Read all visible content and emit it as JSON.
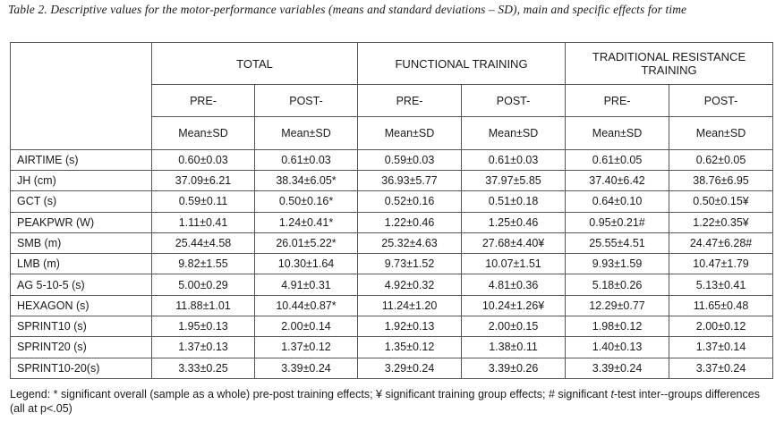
{
  "caption": "Table 2. Descriptive values for the motor-performance variables (means and standard deviations – SD), main and specific effects for time",
  "groups": [
    "TOTAL",
    "FUNCTIONAL TRAINING",
    "TRADITIONAL RESISTANCE TRAINING"
  ],
  "phases": [
    "PRE-",
    "POST-",
    "PRE-",
    "POST-",
    "PRE-",
    "POST-"
  ],
  "stat_label": "Mean±SD",
  "rows": [
    {
      "label": "AIRTIME (s)",
      "values": [
        "0.60±0.03",
        "0.61±0.03",
        "0.59±0.03",
        "0.61±0.03",
        "0.61±0.05",
        "0.62±0.05"
      ]
    },
    {
      "label": "JH (cm)",
      "values": [
        "37.09±6.21",
        "38.34±6.05*",
        "36.93±5.77",
        "37.97±5.85",
        "37.40±6.42",
        "38.76±6.95"
      ]
    },
    {
      "label": "GCT (s)",
      "values": [
        "0.59±0.11",
        "0.50±0.16*",
        "0.52±0.16",
        "0.51±0.18",
        "0.64±0.10",
        "0.50±0.15¥"
      ]
    },
    {
      "label": "PEAKPWR (W)",
      "values": [
        "1.11±0.41",
        "1.24±0.41*",
        "1.22±0.46",
        "1.25±0.46",
        "0.95±0.21#",
        "1.22±0.35¥"
      ]
    },
    {
      "label": "SMB (m)",
      "values": [
        "25.44±4.58",
        "26.01±5.22*",
        "25.32±4.63",
        "27.68±4.40¥",
        "25.55±4.51",
        "24.47±6.28#"
      ]
    },
    {
      "label": "LMB (m)",
      "values": [
        "9.82±1.55",
        "10.30±1.64",
        "9.73±1.52",
        "10.07±1.51",
        "9.93±1.59",
        "10.47±1.79"
      ]
    },
    {
      "label": "AG 5-10-5 (s)",
      "values": [
        "5.00±0.29",
        "4.91±0.31",
        "4.92±0.32",
        "4.81±0.36",
        "5.18±0.26",
        "5.13±0.41"
      ]
    },
    {
      "label": "HEXAGON (s)",
      "values": [
        "11.88±1.01",
        "10.44±0.87*",
        "11.24±1.20",
        "10.24±1.26¥",
        "12.29±0.77",
        "11.65±0.48"
      ]
    },
    {
      "label": "SPRINT10 (s)",
      "values": [
        "1.95±0.13",
        "2.00±0.14",
        "1.92±0.13",
        "2.00±0.15",
        "1.98±0.12",
        "2.00±0.12"
      ]
    },
    {
      "label": "SPRINT20 (s)",
      "values": [
        "1.37±0.13",
        "1.37±0.12",
        "1.35±0.12",
        "1.38±0.11",
        "1.40±0.13",
        "1.37±0.14"
      ]
    },
    {
      "label": "SPRINT10-20(s)",
      "values": [
        "3.33±0.25",
        "3.39±0.24",
        "3.29±0.24",
        "3.39±0.26",
        "3.39±0.24",
        "3.37±0.24"
      ]
    }
  ],
  "legend": {
    "part1": "Legend: * significant overall (sample as a whole) pre-post training effects; ¥ significant training group effects; # significant ",
    "italic": "t",
    "part2": "-test inter--groups differences (all at p<.05)"
  }
}
